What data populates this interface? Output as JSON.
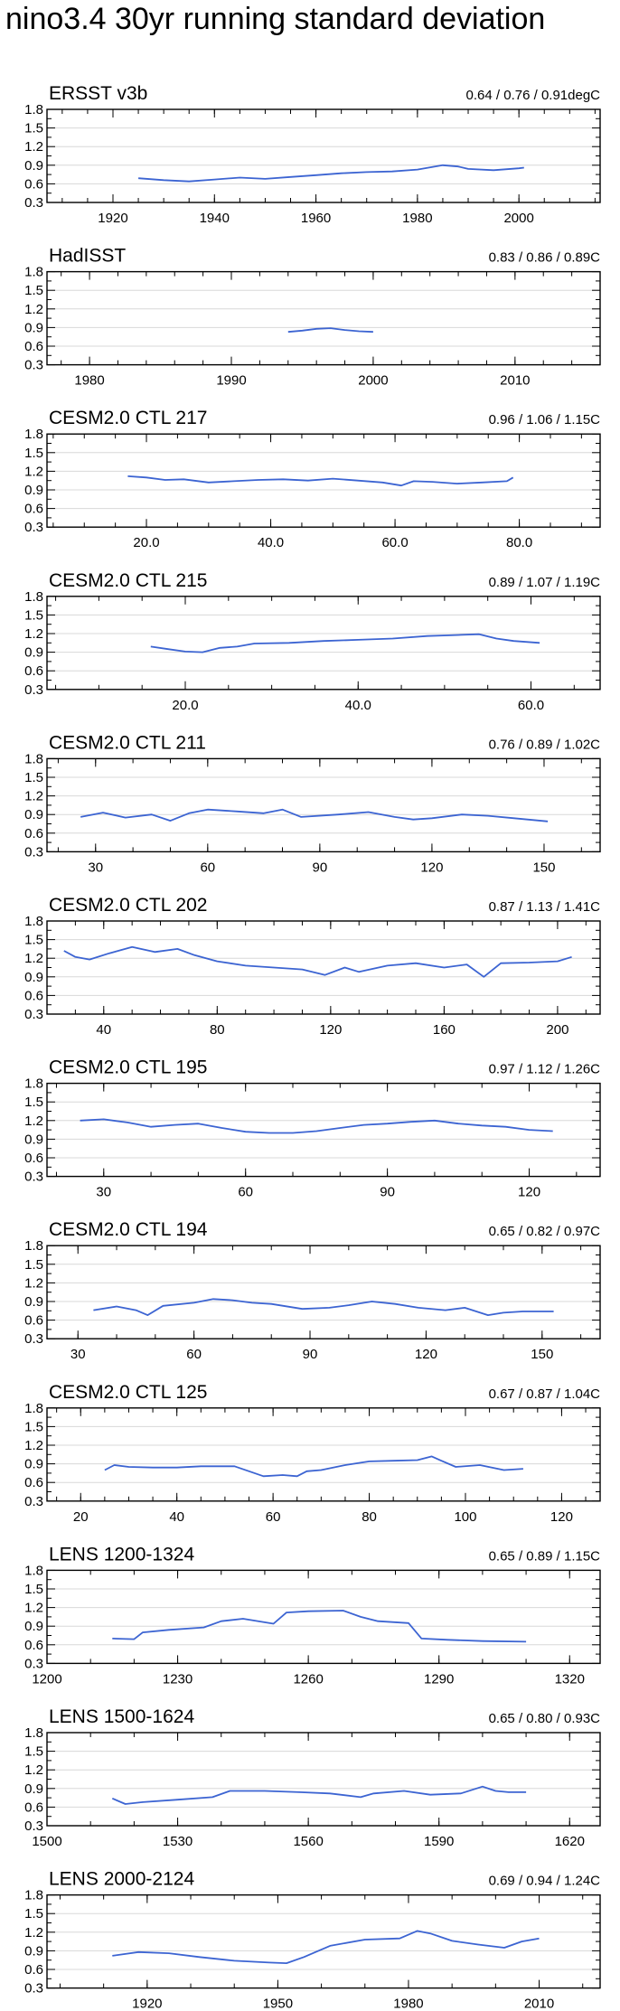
{
  "page": {
    "title": "nino3.4 30yr running standard deviation"
  },
  "colors": {
    "line": "#3c64d2",
    "frame": "#000000",
    "grid": "#d8d8d8"
  },
  "chart_data": [
    {
      "type": "line",
      "title": "ERSST v3b",
      "stats": "0.64 / 0.76 / 0.91degC",
      "xlim": [
        1907,
        2016
      ],
      "ylim": [
        0.3,
        1.8
      ],
      "yticks": [
        "0.3",
        "0.6",
        "0.9",
        "1.2",
        "1.5",
        "1.8"
      ],
      "xticks": [
        {
          "v": 1920,
          "label": "1920"
        },
        {
          "v": 1940,
          "label": "1940"
        },
        {
          "v": 1960,
          "label": "1960"
        },
        {
          "v": 1980,
          "label": "1980"
        },
        {
          "v": 2000,
          "label": "2000"
        }
      ],
      "xminor": 5,
      "x": [
        1925,
        1930,
        1935,
        1940,
        1945,
        1950,
        1955,
        1960,
        1965,
        1970,
        1975,
        1980,
        1985,
        1988,
        1990,
        1995,
        2000,
        2001
      ],
      "y": [
        0.69,
        0.66,
        0.64,
        0.67,
        0.7,
        0.68,
        0.71,
        0.74,
        0.77,
        0.79,
        0.8,
        0.83,
        0.9,
        0.88,
        0.84,
        0.82,
        0.85,
        0.86
      ]
    },
    {
      "type": "line",
      "title": "HadISST",
      "stats": "0.83 / 0.86 / 0.89C",
      "xlim": [
        1977,
        2016
      ],
      "ylim": [
        0.3,
        1.8
      ],
      "yticks": [
        "0.3",
        "0.6",
        "0.9",
        "1.2",
        "1.5",
        "1.8"
      ],
      "xticks": [
        {
          "v": 1980,
          "label": "1980"
        },
        {
          "v": 1990,
          "label": "1990"
        },
        {
          "v": 2000,
          "label": "2000"
        },
        {
          "v": 2010,
          "label": "2010"
        }
      ],
      "xminor": 2,
      "x": [
        1994,
        1995,
        1996,
        1997,
        1998,
        1999,
        2000
      ],
      "y": [
        0.83,
        0.85,
        0.88,
        0.89,
        0.86,
        0.84,
        0.83
      ]
    },
    {
      "type": "line",
      "title": "CESM2.0 CTL 217",
      "stats": "0.96 / 1.06 / 1.15C",
      "xlim": [
        4,
        93
      ],
      "ylim": [
        0.3,
        1.8
      ],
      "yticks": [
        "0.3",
        "0.6",
        "0.9",
        "1.2",
        "1.5",
        "1.8"
      ],
      "xticks": [
        {
          "v": 20,
          "label": "20.0"
        },
        {
          "v": 40,
          "label": "40.0"
        },
        {
          "v": 60,
          "label": "60.0"
        },
        {
          "v": 80,
          "label": "80.0"
        }
      ],
      "xminor": 5,
      "x": [
        17,
        20,
        23,
        26,
        30,
        34,
        38,
        42,
        46,
        50,
        54,
        58,
        61,
        63,
        66,
        70,
        74,
        78,
        79
      ],
      "y": [
        1.12,
        1.1,
        1.06,
        1.07,
        1.02,
        1.04,
        1.06,
        1.07,
        1.05,
        1.08,
        1.05,
        1.02,
        0.97,
        1.04,
        1.03,
        1.0,
        1.02,
        1.04,
        1.1
      ]
    },
    {
      "type": "line",
      "title": "CESM2.0 CTL 215",
      "stats": "0.89 / 1.07 / 1.19C",
      "xlim": [
        4,
        68
      ],
      "ylim": [
        0.3,
        1.8
      ],
      "yticks": [
        "0.3",
        "0.6",
        "0.9",
        "1.2",
        "1.5",
        "1.8"
      ],
      "xticks": [
        {
          "v": 20,
          "label": "20.0"
        },
        {
          "v": 40,
          "label": "40.0"
        },
        {
          "v": 60,
          "label": "60.0"
        }
      ],
      "xminor": 5,
      "x": [
        16,
        18,
        20,
        22,
        24,
        26,
        28,
        32,
        36,
        40,
        44,
        48,
        52,
        54,
        56,
        58,
        61
      ],
      "y": [
        0.99,
        0.95,
        0.91,
        0.9,
        0.97,
        0.99,
        1.04,
        1.05,
        1.08,
        1.1,
        1.12,
        1.16,
        1.18,
        1.19,
        1.12,
        1.08,
        1.05
      ]
    },
    {
      "type": "line",
      "title": "CESM2.0 CTL 211",
      "stats": "0.76 / 0.89 / 1.02C",
      "xlim": [
        17,
        165
      ],
      "ylim": [
        0.3,
        1.8
      ],
      "yticks": [
        "0.3",
        "0.6",
        "0.9",
        "1.2",
        "1.5",
        "1.8"
      ],
      "xticks": [
        {
          "v": 30,
          "label": "30"
        },
        {
          "v": 60,
          "label": "60"
        },
        {
          "v": 90,
          "label": "90"
        },
        {
          "v": 120,
          "label": "120"
        },
        {
          "v": 150,
          "label": "150"
        }
      ],
      "xminor": 10,
      "x": [
        26,
        32,
        38,
        45,
        50,
        55,
        60,
        68,
        75,
        80,
        85,
        95,
        103,
        110,
        115,
        120,
        128,
        135,
        142,
        151
      ],
      "y": [
        0.86,
        0.93,
        0.85,
        0.9,
        0.8,
        0.92,
        0.98,
        0.95,
        0.92,
        0.98,
        0.86,
        0.9,
        0.94,
        0.86,
        0.82,
        0.84,
        0.9,
        0.88,
        0.84,
        0.79
      ]
    },
    {
      "type": "line",
      "title": "CESM2.0 CTL 202",
      "stats": "0.87 / 1.13 / 1.41C",
      "xlim": [
        20,
        215
      ],
      "ylim": [
        0.3,
        1.8
      ],
      "yticks": [
        "0.3",
        "0.6",
        "0.9",
        "1.2",
        "1.5",
        "1.8"
      ],
      "xticks": [
        {
          "v": 40,
          "label": "40"
        },
        {
          "v": 80,
          "label": "80"
        },
        {
          "v": 120,
          "label": "120"
        },
        {
          "v": 160,
          "label": "160"
        },
        {
          "v": 200,
          "label": "200"
        }
      ],
      "xminor": 10,
      "x": [
        26,
        30,
        35,
        42,
        50,
        58,
        66,
        72,
        80,
        90,
        100,
        110,
        118,
        125,
        130,
        140,
        150,
        160,
        168,
        174,
        180,
        190,
        200,
        205
      ],
      "y": [
        1.32,
        1.22,
        1.18,
        1.28,
        1.38,
        1.3,
        1.35,
        1.25,
        1.15,
        1.08,
        1.05,
        1.02,
        0.93,
        1.05,
        0.98,
        1.08,
        1.12,
        1.05,
        1.1,
        0.9,
        1.12,
        1.13,
        1.15,
        1.22
      ]
    },
    {
      "type": "line",
      "title": "CESM2.0 CTL 195",
      "stats": "0.97 / 1.12 / 1.26C",
      "xlim": [
        18,
        135
      ],
      "ylim": [
        0.3,
        1.8
      ],
      "yticks": [
        "0.3",
        "0.6",
        "0.9",
        "1.2",
        "1.5",
        "1.8"
      ],
      "xticks": [
        {
          "v": 30,
          "label": "30"
        },
        {
          "v": 60,
          "label": "60"
        },
        {
          "v": 90,
          "label": "90"
        },
        {
          "v": 120,
          "label": "120"
        }
      ],
      "xminor": 10,
      "x": [
        25,
        30,
        35,
        40,
        45,
        50,
        55,
        60,
        65,
        70,
        75,
        80,
        85,
        90,
        95,
        100,
        105,
        110,
        115,
        120,
        125
      ],
      "y": [
        1.2,
        1.22,
        1.17,
        1.1,
        1.13,
        1.15,
        1.08,
        1.02,
        1.0,
        1.0,
        1.03,
        1.08,
        1.13,
        1.15,
        1.18,
        1.2,
        1.15,
        1.12,
        1.1,
        1.05,
        1.03
      ]
    },
    {
      "type": "line",
      "title": "CESM2.0 CTL 194",
      "stats": "0.65 / 0.82 / 0.97C",
      "xlim": [
        22,
        165
      ],
      "ylim": [
        0.3,
        1.8
      ],
      "yticks": [
        "0.3",
        "0.6",
        "0.9",
        "1.2",
        "1.5",
        "1.8"
      ],
      "xticks": [
        {
          "v": 30,
          "label": "30"
        },
        {
          "v": 60,
          "label": "60"
        },
        {
          "v": 90,
          "label": "90"
        },
        {
          "v": 120,
          "label": "120"
        },
        {
          "v": 150,
          "label": "150"
        }
      ],
      "xminor": 10,
      "x": [
        34,
        40,
        45,
        48,
        52,
        60,
        65,
        70,
        75,
        80,
        88,
        95,
        100,
        106,
        112,
        118,
        125,
        130,
        136,
        140,
        145,
        153
      ],
      "y": [
        0.76,
        0.82,
        0.76,
        0.68,
        0.83,
        0.88,
        0.94,
        0.92,
        0.88,
        0.86,
        0.78,
        0.8,
        0.84,
        0.9,
        0.86,
        0.8,
        0.76,
        0.8,
        0.68,
        0.72,
        0.74,
        0.74
      ]
    },
    {
      "type": "line",
      "title": "CESM2.0 CTL 125",
      "stats": "0.67 / 0.87 / 1.04C",
      "xlim": [
        13,
        128
      ],
      "ylim": [
        0.3,
        1.8
      ],
      "yticks": [
        "0.3",
        "0.6",
        "0.9",
        "1.2",
        "1.5",
        "1.8"
      ],
      "xticks": [
        {
          "v": 20,
          "label": "20"
        },
        {
          "v": 40,
          "label": "40"
        },
        {
          "v": 60,
          "label": "60"
        },
        {
          "v": 80,
          "label": "80"
        },
        {
          "v": 100,
          "label": "100"
        },
        {
          "v": 120,
          "label": "120"
        }
      ],
      "xminor": 5,
      "x": [
        25,
        27,
        30,
        35,
        40,
        45,
        52,
        55,
        58,
        62,
        65,
        67,
        70,
        75,
        80,
        85,
        90,
        93,
        95,
        98,
        103,
        108,
        112
      ],
      "y": [
        0.8,
        0.88,
        0.85,
        0.84,
        0.84,
        0.86,
        0.86,
        0.78,
        0.7,
        0.72,
        0.7,
        0.78,
        0.8,
        0.88,
        0.94,
        0.95,
        0.96,
        1.02,
        0.95,
        0.85,
        0.88,
        0.8,
        0.82
      ]
    },
    {
      "type": "line",
      "title": "LENS 1200-1324",
      "stats": "0.65 / 0.89 / 1.15C",
      "xlim": [
        1200,
        1327
      ],
      "ylim": [
        0.3,
        1.8
      ],
      "yticks": [
        "0.3",
        "0.6",
        "0.9",
        "1.2",
        "1.5",
        "1.8"
      ],
      "xticks": [
        {
          "v": 1200,
          "label": "1200"
        },
        {
          "v": 1230,
          "label": "1230"
        },
        {
          "v": 1260,
          "label": "1260"
        },
        {
          "v": 1290,
          "label": "1290"
        },
        {
          "v": 1320,
          "label": "1320"
        }
      ],
      "xminor": 10,
      "x": [
        1215,
        1220,
        1222,
        1228,
        1236,
        1240,
        1245,
        1252,
        1255,
        1260,
        1268,
        1272,
        1276,
        1283,
        1286,
        1292,
        1300,
        1310
      ],
      "y": [
        0.7,
        0.69,
        0.8,
        0.84,
        0.88,
        0.98,
        1.02,
        0.94,
        1.12,
        1.14,
        1.15,
        1.05,
        0.98,
        0.95,
        0.7,
        0.68,
        0.66,
        0.65
      ]
    },
    {
      "type": "line",
      "title": "LENS 1500-1624",
      "stats": "0.65 / 0.80 / 0.93C",
      "xlim": [
        1500,
        1627
      ],
      "ylim": [
        0.3,
        1.8
      ],
      "yticks": [
        "0.3",
        "0.6",
        "0.9",
        "1.2",
        "1.5",
        "1.8"
      ],
      "xticks": [
        {
          "v": 1500,
          "label": "1500"
        },
        {
          "v": 1530,
          "label": "1530"
        },
        {
          "v": 1560,
          "label": "1560"
        },
        {
          "v": 1590,
          "label": "1590"
        },
        {
          "v": 1620,
          "label": "1620"
        }
      ],
      "xminor": 10,
      "x": [
        1515,
        1518,
        1522,
        1530,
        1538,
        1542,
        1550,
        1558,
        1565,
        1572,
        1575,
        1582,
        1588,
        1595,
        1600,
        1603,
        1606,
        1610
      ],
      "y": [
        0.74,
        0.65,
        0.68,
        0.72,
        0.76,
        0.86,
        0.86,
        0.84,
        0.82,
        0.76,
        0.82,
        0.86,
        0.8,
        0.82,
        0.93,
        0.86,
        0.84,
        0.84
      ]
    },
    {
      "type": "line",
      "title": "LENS 2000-2124",
      "stats": "0.69 / 0.94 / 1.24C",
      "xlim": [
        1897,
        2024
      ],
      "ylim": [
        0.3,
        1.8
      ],
      "yticks": [
        "0.3",
        "0.6",
        "0.9",
        "1.2",
        "1.5",
        "1.8"
      ],
      "xticks": [
        {
          "v": 1920,
          "label": "1920"
        },
        {
          "v": 1950,
          "label": "1950"
        },
        {
          "v": 1980,
          "label": "1980"
        },
        {
          "v": 2010,
          "label": "2010"
        }
      ],
      "xminor": 10,
      "x": [
        1912,
        1918,
        1925,
        1932,
        1940,
        1948,
        1952,
        1956,
        1962,
        1970,
        1978,
        1982,
        1985,
        1990,
        1996,
        2002,
        2006,
        2010
      ],
      "y": [
        0.82,
        0.88,
        0.86,
        0.8,
        0.74,
        0.71,
        0.7,
        0.8,
        0.98,
        1.08,
        1.1,
        1.22,
        1.18,
        1.06,
        1.0,
        0.95,
        1.05,
        1.1
      ]
    }
  ]
}
